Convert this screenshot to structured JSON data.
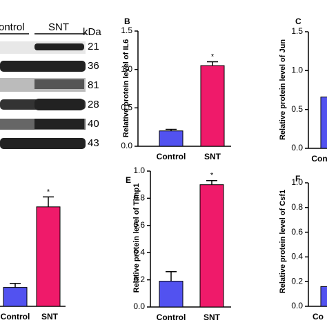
{
  "blot": {
    "groups": [
      "ontrol",
      "SNT"
    ],
    "unit": "kDa",
    "sizes": [
      "21",
      "36",
      "81",
      "28",
      "40",
      "43"
    ]
  },
  "chart_data": [
    {
      "type": "bar",
      "panel": "B",
      "ylabel": "Relative protein level of IL6",
      "categories": [
        "Control",
        "SNT"
      ],
      "values": [
        0.2,
        1.05
      ],
      "errors": [
        0.02,
        0.05
      ],
      "colors": [
        "#5252f0",
        "#ef1a6a"
      ],
      "annotations": [
        null,
        "*"
      ],
      "ylim": [
        0,
        1.5
      ],
      "yticks": [
        {
          "value": 0,
          "label": "0.0"
        },
        {
          "value": 0.5,
          "label": "0.5"
        },
        {
          "value": 1,
          "label": "1.0"
        },
        {
          "value": 1.5,
          "label": "1.5"
        }
      ]
    },
    {
      "type": "bar",
      "panel": "C",
      "ylabel": "Relative protein level of Jun",
      "categories": [
        "Con"
      ],
      "values": [
        0.66
      ],
      "errors": [
        0.02
      ],
      "colors": [
        "#5252f0"
      ],
      "annotations": [
        null
      ],
      "ylim": [
        0,
        1.5
      ],
      "yticks": [
        {
          "value": 0,
          "label": "0.0"
        },
        {
          "value": 0.5,
          "label": "0.5"
        },
        {
          "value": 1,
          "label": "1.0"
        },
        {
          "value": 1.5,
          "label": "1.5"
        }
      ]
    },
    {
      "type": "bar",
      "categories": [
        "Control",
        "SNT"
      ],
      "values": [
        0.19,
        1.0
      ],
      "errors": [
        0.04,
        0.1
      ],
      "colors": [
        "#5252f0",
        "#ef1a6a"
      ],
      "annotations": [
        null,
        "*"
      ],
      "ylim": [
        0,
        1.2
      ]
    },
    {
      "type": "bar",
      "panel": "E",
      "ylabel": "Relative protein level of Timp1",
      "categories": [
        "Control",
        "SNT"
      ],
      "values": [
        0.19,
        0.9
      ],
      "errors": [
        0.07,
        0.03
      ],
      "colors": [
        "#5252f0",
        "#ef1a6a"
      ],
      "annotations": [
        null,
        "*"
      ],
      "ylim": [
        0,
        1
      ],
      "yticks": [
        {
          "value": 0,
          "label": "0.0"
        },
        {
          "value": 0.2,
          "label": "0.2"
        },
        {
          "value": 0.4,
          "label": "0.4"
        },
        {
          "value": 0.6,
          "label": "0.6"
        },
        {
          "value": 0.8,
          "label": "0.8"
        },
        {
          "value": 1,
          "label": "1.0"
        }
      ]
    },
    {
      "type": "bar",
      "panel": "F",
      "ylabel": "Relative protein level of Csf1",
      "categories": [
        "Co"
      ],
      "values": [
        0.16
      ],
      "errors": [
        0.02
      ],
      "colors": [
        "#5252f0"
      ],
      "annotations": [
        null
      ],
      "ylim": [
        0,
        1
      ],
      "yticks": [
        {
          "value": 0,
          "label": "0.0"
        },
        {
          "value": 0.2,
          "label": "0.2"
        },
        {
          "value": 0.4,
          "label": "0.4"
        },
        {
          "value": 0.6,
          "label": "0.6"
        },
        {
          "value": 0.8,
          "label": "0.8"
        },
        {
          "value": 1,
          "label": "1.0"
        }
      ]
    }
  ]
}
